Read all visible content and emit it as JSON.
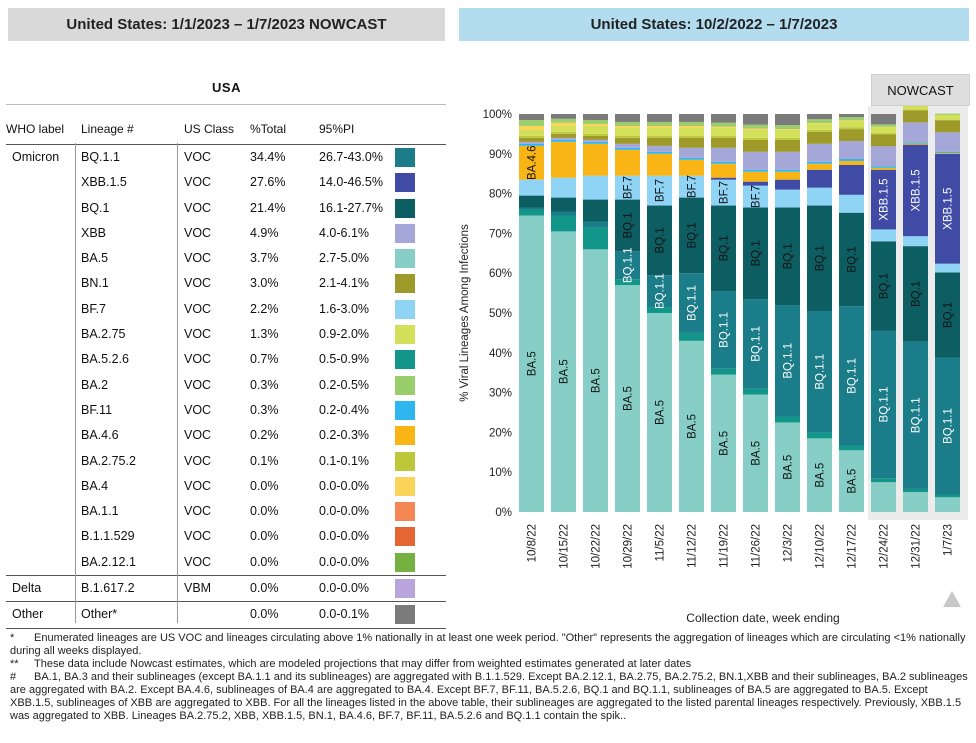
{
  "headers": {
    "left": "United States: 1/1/2023 – 1/7/2023 NOWCAST",
    "right": "United States: 10/2/2022 – 1/7/2023"
  },
  "table": {
    "title": "USA",
    "columns": [
      "WHO label",
      "Lineage #",
      "US Class",
      "%Total",
      "95%PI"
    ],
    "rows": [
      {
        "who": "Omicron",
        "lineage": "BQ.1.1",
        "cls": "VOC",
        "pct": "34.4%",
        "pi": "26.7-43.0%",
        "color": "#1b7c8a"
      },
      {
        "who": "",
        "lineage": "XBB.1.5",
        "cls": "VOC",
        "pct": "27.6%",
        "pi": "14.0-46.5%",
        "color": "#3f4ba5"
      },
      {
        "who": "",
        "lineage": "BQ.1",
        "cls": "VOC",
        "pct": "21.4%",
        "pi": "16.1-27.7%",
        "color": "#0d5e63"
      },
      {
        "who": "",
        "lineage": "XBB",
        "cls": "VOC",
        "pct": "4.9%",
        "pi": "4.0-6.1%",
        "color": "#a4a7d8"
      },
      {
        "who": "",
        "lineage": "BA.5",
        "cls": "VOC",
        "pct": "3.7%",
        "pi": "2.7-5.0%",
        "color": "#87cfc6"
      },
      {
        "who": "",
        "lineage": "BN.1",
        "cls": "VOC",
        "pct": "3.0%",
        "pi": "2.1-4.1%",
        "color": "#9e9a2a"
      },
      {
        "who": "",
        "lineage": "BF.7",
        "cls": "VOC",
        "pct": "2.2%",
        "pi": "1.6-3.0%",
        "color": "#8fd3f5"
      },
      {
        "who": "",
        "lineage": "BA.2.75",
        "cls": "VOC",
        "pct": "1.3%",
        "pi": "0.9-2.0%",
        "color": "#d3e15a"
      },
      {
        "who": "",
        "lineage": "BA.5.2.6",
        "cls": "VOC",
        "pct": "0.7%",
        "pi": "0.5-0.9%",
        "color": "#12968a"
      },
      {
        "who": "",
        "lineage": "BA.2",
        "cls": "VOC",
        "pct": "0.3%",
        "pi": "0.2-0.5%",
        "color": "#9acd6b"
      },
      {
        "who": "",
        "lineage": "BF.11",
        "cls": "VOC",
        "pct": "0.3%",
        "pi": "0.2-0.4%",
        "color": "#2fb6f0"
      },
      {
        "who": "",
        "lineage": "BA.4.6",
        "cls": "VOC",
        "pct": "0.2%",
        "pi": "0.2-0.3%",
        "color": "#f9b515"
      },
      {
        "who": "",
        "lineage": "BA.2.75.2",
        "cls": "VOC",
        "pct": "0.1%",
        "pi": "0.1-0.1%",
        "color": "#bcc83a"
      },
      {
        "who": "",
        "lineage": "BA.4",
        "cls": "VOC",
        "pct": "0.0%",
        "pi": "0.0-0.0%",
        "color": "#fbd45a"
      },
      {
        "who": "",
        "lineage": "BA.1.1",
        "cls": "VOC",
        "pct": "0.0%",
        "pi": "0.0-0.0%",
        "color": "#f58755"
      },
      {
        "who": "",
        "lineage": "B.1.1.529",
        "cls": "VOC",
        "pct": "0.0%",
        "pi": "0.0-0.0%",
        "color": "#e46633"
      },
      {
        "who": "",
        "lineage": "BA.2.12.1",
        "cls": "VOC",
        "pct": "0.0%",
        "pi": "0.0-0.0%",
        "color": "#76b041"
      },
      {
        "who": "Delta",
        "lineage": "B.1.617.2",
        "cls": "VBM",
        "pct": "0.0%",
        "pi": "0.0-0.0%",
        "color": "#b9a5dc"
      },
      {
        "who": "Other",
        "lineage": "Other*",
        "cls": "",
        "pct": "0.0%",
        "pi": "0.0-0.1%",
        "color": "#7b7b7b"
      }
    ]
  },
  "nowcast_label": "NOWCAST",
  "chart_data": {
    "type": "bar",
    "stacked": true,
    "xlabel": "Collection date, week ending",
    "ylabel": "% Viral Lineages Among Infections",
    "ylim": [
      0,
      100
    ],
    "yticks": [
      "0%",
      "10%",
      "20%",
      "30%",
      "40%",
      "50%",
      "60%",
      "70%",
      "80%",
      "90%",
      "100%"
    ],
    "categories": [
      "10/8/22",
      "10/15/22",
      "10/22/22",
      "10/29/22",
      "11/5/22",
      "11/12/22",
      "11/19/22",
      "11/26/22",
      "12/3/22",
      "12/10/22",
      "12/17/22",
      "12/24/22",
      "12/31/22",
      "1/7/23"
    ],
    "nowcast_from_index": 11,
    "series": [
      {
        "name": "BA.5",
        "color": "#87cfc6",
        "values": [
          74.5,
          70.5,
          66,
          57,
          50,
          43,
          34.5,
          29.5,
          22.5,
          18.5,
          15.5,
          7.5,
          5,
          3.7
        ]
      },
      {
        "name": "BA.5.2.6",
        "color": "#12968a",
        "values": [
          1.5,
          4,
          5.5,
          1.5,
          1.5,
          2,
          1.5,
          1.5,
          1.5,
          1.5,
          1.2,
          1,
          0.8,
          0.7
        ]
      },
      {
        "name": "BQ.1.1",
        "color": "#1b7c8a",
        "values": [
          0.5,
          1,
          1.5,
          7,
          8,
          15,
          19.5,
          22.5,
          28,
          30.5,
          35,
          37,
          37,
          34.4
        ]
      },
      {
        "name": "BQ.1",
        "color": "#0d5e63",
        "values": [
          3,
          3.5,
          5.5,
          13,
          17.5,
          19,
          21.5,
          23,
          24.5,
          26.5,
          23.5,
          22.5,
          24,
          21.4
        ]
      },
      {
        "name": "BF.7",
        "color": "#8fd3f5",
        "values": [
          4,
          5,
          6,
          6,
          7.5,
          5.5,
          6.5,
          5.5,
          4.5,
          4.5,
          4.5,
          3,
          2.5,
          2.2
        ]
      },
      {
        "name": "XBB.1.5",
        "color": "#3f4ba5",
        "values": [
          0,
          0,
          0,
          0,
          0,
          0,
          0.5,
          1,
          2.5,
          4.5,
          7.5,
          15,
          23,
          27.6
        ]
      },
      {
        "name": "BA.4.6",
        "color": "#f9b515",
        "values": [
          8.5,
          9,
          8,
          6.5,
          5.5,
          4,
          3.5,
          2.5,
          2,
          1.5,
          1,
          0.5,
          0.3,
          0.2
        ]
      },
      {
        "name": "BF.11",
        "color": "#2fb6f0",
        "values": [
          0.5,
          0.5,
          0.5,
          0.5,
          0.5,
          0.5,
          0.5,
          0.5,
          0.5,
          0.5,
          0.5,
          0.4,
          0.3,
          0.3
        ]
      },
      {
        "name": "XBB",
        "color": "#a4a7d8",
        "values": [
          0.5,
          0.5,
          0.5,
          1,
          1.5,
          2.5,
          3.5,
          4.5,
          4.5,
          4.5,
          4.5,
          5,
          5,
          4.9
        ]
      },
      {
        "name": "BN.1",
        "color": "#9e9a2a",
        "values": [
          1,
          1,
          1,
          1.5,
          2,
          2.5,
          2.5,
          3,
          3,
          3,
          3,
          3,
          3,
          3
        ]
      },
      {
        "name": "BA.2.75.2",
        "color": "#bcc83a",
        "values": [
          0.5,
          0.5,
          0.5,
          0.5,
          0.5,
          0.5,
          0.5,
          0.5,
          0.5,
          0.5,
          0.5,
          0.3,
          0.2,
          0.1
        ]
      },
      {
        "name": "BA.2.75",
        "color": "#d3e15a",
        "values": [
          1.5,
          1.5,
          2,
          2,
          2,
          2,
          2,
          2,
          2,
          1.5,
          1.5,
          1.5,
          1.5,
          1.3
        ]
      },
      {
        "name": "BA.4",
        "color": "#fbd45a",
        "values": [
          1,
          0.8,
          0.5,
          0.5,
          0.5,
          0.5,
          0.3,
          0.3,
          0.2,
          0.2,
          0.2,
          0.1,
          0.1,
          0
        ]
      },
      {
        "name": "BA.2",
        "color": "#9acd6b",
        "values": [
          1.5,
          1,
          1,
          1,
          1,
          1,
          1,
          1,
          1,
          1,
          0.8,
          0.6,
          0.5,
          0.3
        ]
      },
      {
        "name": "Other",
        "color": "#7b7b7b",
        "values": [
          1,
          1.2,
          1.5,
          2.5,
          2,
          2,
          2.2,
          2.7,
          2.8,
          1.5,
          0.8,
          2.6,
          -3.2,
          -0.1
        ]
      }
    ],
    "bar_labels": [
      {
        "series": "BA.5",
        "bars": [
          0,
          1,
          2,
          3,
          4,
          5,
          6,
          7,
          8,
          9,
          10
        ]
      },
      {
        "series": "BA.4.6",
        "bars": [
          0
        ]
      },
      {
        "series": "BF.7",
        "bars": [
          3,
          4,
          5,
          6,
          7
        ]
      },
      {
        "series": "BQ.1.1",
        "bars": [
          3,
          4,
          5,
          6,
          7,
          8,
          9,
          10,
          11,
          12,
          13
        ]
      },
      {
        "series": "BQ.1",
        "bars": [
          3,
          4,
          5,
          6,
          7,
          8,
          9,
          10,
          11,
          12,
          13
        ]
      },
      {
        "series": "XBB.1.5",
        "bars": [
          11,
          12,
          13
        ]
      }
    ]
  },
  "notes": [
    {
      "key": "*",
      "text": "Enumerated lineages are US VOC and lineages circulating above 1% nationally in at least one week period. \"Other\" represents the aggregation of lineages which are circulating <1% nationally during all weeks displayed."
    },
    {
      "key": "**",
      "text": "These data include Nowcast estimates, which are modeled projections that may differ from weighted estimates generated at later dates"
    },
    {
      "key": "#",
      "text": "BA.1, BA.3 and their sublineages (except BA.1.1 and its sublineages) are aggregated with B.1.1.529. Except BA.2.12.1, BA.2.75, BA.2.75.2, BN.1,XBB and their sublineages, BA.2 sublineages are aggregated with BA.2. Except BA.4.6, sublineages of BA.4 are aggregated to BA.4. Except BF.7, BF.11, BA.5.2.6, BQ.1 and BQ.1.1, sublineages of BA.5 are aggregated to BA.5. Except XBB.1.5, sublineages of XBB are aggregated to XBB. For all the lineages listed in the above table, their sublineages are aggregated to the listed parental lineages respectively. Previously, XBB.1.5 was aggregated to XBB. Lineages BA.2.75.2, XBB, XBB.1.5, BN.1, BA.4.6, BF.7, BF.11, BA.5.2.6 and BQ.1.1 contain the spik.."
    }
  ]
}
